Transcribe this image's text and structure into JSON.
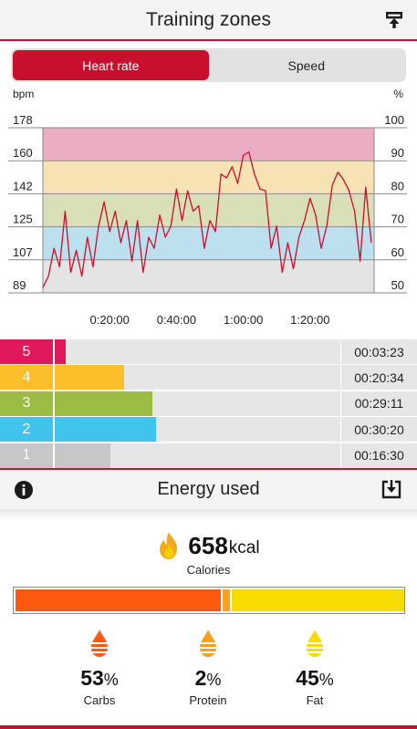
{
  "header": {
    "title": "Training zones",
    "icon": "upload-icon"
  },
  "toggle": {
    "options": [
      "Heart rate",
      "Speed"
    ],
    "selected": "Heart rate"
  },
  "chart_data": {
    "type": "line",
    "ylabel_left": "bpm",
    "ylabel_right": "%",
    "y_ticks_left": [
      178,
      160,
      142,
      125,
      107,
      89
    ],
    "y_ticks_right": [
      100,
      90,
      80,
      70,
      60,
      50
    ],
    "ylim_percent": [
      50,
      100
    ],
    "x_ticks": [
      "0:20:00",
      "0:40:00",
      "1:00:00",
      "1:20:00"
    ],
    "x_tick_seconds": [
      1200,
      2400,
      3600,
      4800
    ],
    "xlim_seconds": [
      0,
      5950
    ],
    "zone_bands": [
      {
        "zone": 5,
        "from_pct": 90,
        "to_pct": 100,
        "color": "#ebadc3"
      },
      {
        "zone": 4,
        "from_pct": 80,
        "to_pct": 90,
        "color": "#f6e2b3"
      },
      {
        "zone": 3,
        "from_pct": 70,
        "to_pct": 80,
        "color": "#d9dfb7"
      },
      {
        "zone": 2,
        "from_pct": 60,
        "to_pct": 70,
        "color": "#bce0ee"
      },
      {
        "zone": 1,
        "from_pct": 50,
        "to_pct": 60,
        "color": "#e4e4e4"
      }
    ],
    "series": [
      {
        "color": "#c8102e",
        "x": [
          0,
          100,
          200,
          300,
          400,
          500,
          600,
          700,
          800,
          900,
          1000,
          1100,
          1200,
          1300,
          1400,
          1500,
          1600,
          1700,
          1800,
          1900,
          2000,
          2100,
          2200,
          2300,
          2400,
          2500,
          2600,
          2700,
          2800,
          2900,
          3000,
          3100,
          3200,
          3300,
          3400,
          3500,
          3600,
          3700,
          3800,
          3900,
          4000,
          4100,
          4200,
          4300,
          4400,
          4500,
          4600,
          4700,
          4800,
          4900,
          5000,
          5100,
          5200,
          5300,
          5400,
          5500,
          5600,
          5700,
          5800,
          5900
        ],
        "values": [
          92,
          98,
          113,
          103,
          133,
          100,
          112,
          98,
          119,
          103,
          125,
          138,
          122,
          133,
          116,
          128,
          106,
          128,
          100,
          119,
          113,
          131,
          119,
          125,
          145,
          128,
          144,
          133,
          136,
          113,
          128,
          122,
          153,
          151,
          157,
          148,
          163,
          165,
          153,
          145,
          144,
          113,
          125,
          100,
          116,
          102,
          119,
          128,
          140,
          131,
          113,
          125,
          147,
          154,
          150,
          144,
          133,
          106,
          146,
          116
        ]
      }
    ]
  },
  "zones": [
    {
      "zone": "5",
      "time": "00:03:23",
      "fraction": 0.044,
      "color": "#e01a5a"
    },
    {
      "zone": "4",
      "time": "00:20:34",
      "fraction": 0.281,
      "color": "#fcbf2c"
    },
    {
      "zone": "3",
      "time": "00:29:11",
      "fraction": 0.399,
      "color": "#9bbd44"
    },
    {
      "zone": "2",
      "time": "00:30:20",
      "fraction": 0.414,
      "color": "#41c4ec"
    },
    {
      "zone": "1",
      "time": "00:16:30",
      "fraction": 0.225,
      "color": "#c7c7c7"
    }
  ],
  "energy": {
    "title": "Energy used",
    "icons": [
      "info-icon",
      "save-icon"
    ],
    "calories_value": "658",
    "calories_unit": "kcal",
    "calories_label": "Calories",
    "macros": [
      {
        "name": "Carbs",
        "value": "53",
        "unit": "%",
        "fraction": 0.53,
        "color": "#ff5a10"
      },
      {
        "name": "Protein",
        "value": "2",
        "unit": "%",
        "fraction": 0.02,
        "color": "#f7a21b"
      },
      {
        "name": "Fat",
        "value": "45",
        "unit": "%",
        "fraction": 0.45,
        "color": "#f6dc00"
      }
    ]
  }
}
